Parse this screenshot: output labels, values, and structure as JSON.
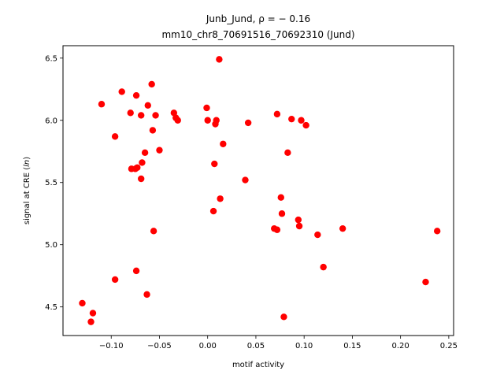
{
  "chart_data": {
    "type": "scatter",
    "title_line1": "Junb_Jund, ρ = − 0.16",
    "title_line2": "mm10_chr8_70691516_70692310 (Jund)",
    "xlabel": "motif activity",
    "ylabel_prefix": "signal at CRE (",
    "ylabel_italic": "ln",
    "ylabel_suffix": ")",
    "xlim": [
      -0.15,
      0.255
    ],
    "ylim": [
      4.27,
      6.6
    ],
    "xticks": [
      -0.1,
      -0.05,
      0.0,
      0.05,
      0.1,
      0.15,
      0.2,
      0.25
    ],
    "xtick_labels": [
      "−0.10",
      "−0.05",
      "0.00",
      "0.05",
      "0.10",
      "0.15",
      "0.20",
      "0.25"
    ],
    "yticks": [
      4.5,
      5.0,
      5.5,
      6.0,
      6.5
    ],
    "ytick_labels": [
      "4.5",
      "5.0",
      "5.5",
      "6.0",
      "6.5"
    ],
    "grid": false,
    "marker_color": "#ff0000",
    "points": [
      {
        "x": 0.012,
        "y": 6.49
      },
      {
        "x": -0.058,
        "y": 6.29
      },
      {
        "x": -0.089,
        "y": 6.23
      },
      {
        "x": -0.074,
        "y": 6.2
      },
      {
        "x": -0.11,
        "y": 6.13
      },
      {
        "x": -0.062,
        "y": 6.12
      },
      {
        "x": -0.001,
        "y": 6.1
      },
      {
        "x": -0.08,
        "y": 6.06
      },
      {
        "x": -0.035,
        "y": 6.06
      },
      {
        "x": -0.069,
        "y": 6.04
      },
      {
        "x": -0.054,
        "y": 6.04
      },
      {
        "x": 0.072,
        "y": 6.05
      },
      {
        "x": -0.033,
        "y": 6.02
      },
      {
        "x": -0.031,
        "y": 6.0
      },
      {
        "x": 0.0,
        "y": 6.0
      },
      {
        "x": 0.009,
        "y": 6.0
      },
      {
        "x": 0.008,
        "y": 5.97
      },
      {
        "x": 0.042,
        "y": 5.98
      },
      {
        "x": 0.087,
        "y": 6.01
      },
      {
        "x": 0.097,
        "y": 6.0
      },
      {
        "x": 0.102,
        "y": 5.96
      },
      {
        "x": -0.057,
        "y": 5.92
      },
      {
        "x": -0.096,
        "y": 5.87
      },
      {
        "x": 0.016,
        "y": 5.81
      },
      {
        "x": -0.05,
        "y": 5.76
      },
      {
        "x": -0.065,
        "y": 5.74
      },
      {
        "x": 0.083,
        "y": 5.74
      },
      {
        "x": -0.068,
        "y": 5.66
      },
      {
        "x": 0.007,
        "y": 5.65
      },
      {
        "x": -0.079,
        "y": 5.61
      },
      {
        "x": -0.075,
        "y": 5.61
      },
      {
        "x": -0.073,
        "y": 5.62
      },
      {
        "x": -0.069,
        "y": 5.53
      },
      {
        "x": 0.039,
        "y": 5.52
      },
      {
        "x": 0.076,
        "y": 5.38
      },
      {
        "x": 0.013,
        "y": 5.37
      },
      {
        "x": 0.006,
        "y": 5.27
      },
      {
        "x": 0.077,
        "y": 5.25
      },
      {
        "x": 0.094,
        "y": 5.2
      },
      {
        "x": 0.095,
        "y": 5.15
      },
      {
        "x": 0.069,
        "y": 5.13
      },
      {
        "x": 0.072,
        "y": 5.12
      },
      {
        "x": -0.056,
        "y": 5.11
      },
      {
        "x": 0.14,
        "y": 5.13
      },
      {
        "x": 0.114,
        "y": 5.08
      },
      {
        "x": 0.238,
        "y": 5.11
      },
      {
        "x": 0.12,
        "y": 4.82
      },
      {
        "x": -0.074,
        "y": 4.79
      },
      {
        "x": -0.096,
        "y": 4.72
      },
      {
        "x": 0.226,
        "y": 4.7
      },
      {
        "x": -0.063,
        "y": 4.6
      },
      {
        "x": -0.13,
        "y": 4.53
      },
      {
        "x": -0.119,
        "y": 4.45
      },
      {
        "x": 0.079,
        "y": 4.42
      },
      {
        "x": -0.121,
        "y": 4.38
      }
    ]
  }
}
